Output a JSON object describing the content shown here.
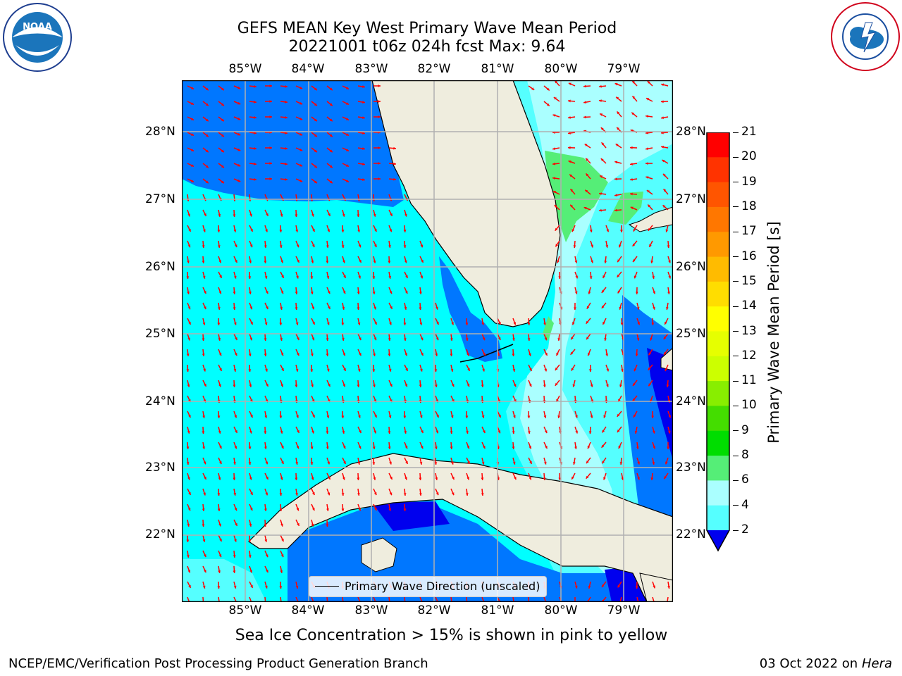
{
  "title": {
    "line1": "GEFS MEAN Key West Primary Wave Mean Period",
    "line2": "20221001 t06z 024h fcst   Max: 9.64"
  },
  "axes": {
    "lon_labels": [
      "85°W",
      "84°W",
      "83°W",
      "82°W",
      "81°W",
      "80°W",
      "79°W"
    ],
    "lat_labels": [
      "28°N",
      "27°N",
      "26°N",
      "25°N",
      "24°N",
      "23°N",
      "22°N"
    ]
  },
  "colorbar": {
    "label": "Primary Wave Mean Period [s]",
    "ticks": [
      "21",
      "20",
      "19",
      "18",
      "17",
      "16",
      "15",
      "14",
      "13",
      "12",
      "11",
      "10",
      "9",
      "8",
      "6",
      "4",
      "2"
    ],
    "colors": [
      "#ff0000",
      "#ff3300",
      "#ff5500",
      "#ff7700",
      "#ff9900",
      "#ffbb00",
      "#ffdd00",
      "#ffff00",
      "#e6ff00",
      "#ccff00",
      "#88ee00",
      "#44dd00",
      "#00dd00",
      "#55ee77",
      "#aaffff",
      "#55ffff",
      "#00ffff",
      "#0077ff"
    ]
  },
  "legend": {
    "label": "Primary Wave Direction (unscaled)"
  },
  "caption": "Sea Ice Concentration > 15% is shown in pink to yellow",
  "footer": {
    "left": "NCEP/EMC/Verification Post Processing Product Generation Branch",
    "right_prefix": "03 Oct 2022 on ",
    "right_host": "Hera"
  },
  "logos": {
    "left": "NOAA",
    "right": "NATIONAL WEATHER SERVICE"
  }
}
